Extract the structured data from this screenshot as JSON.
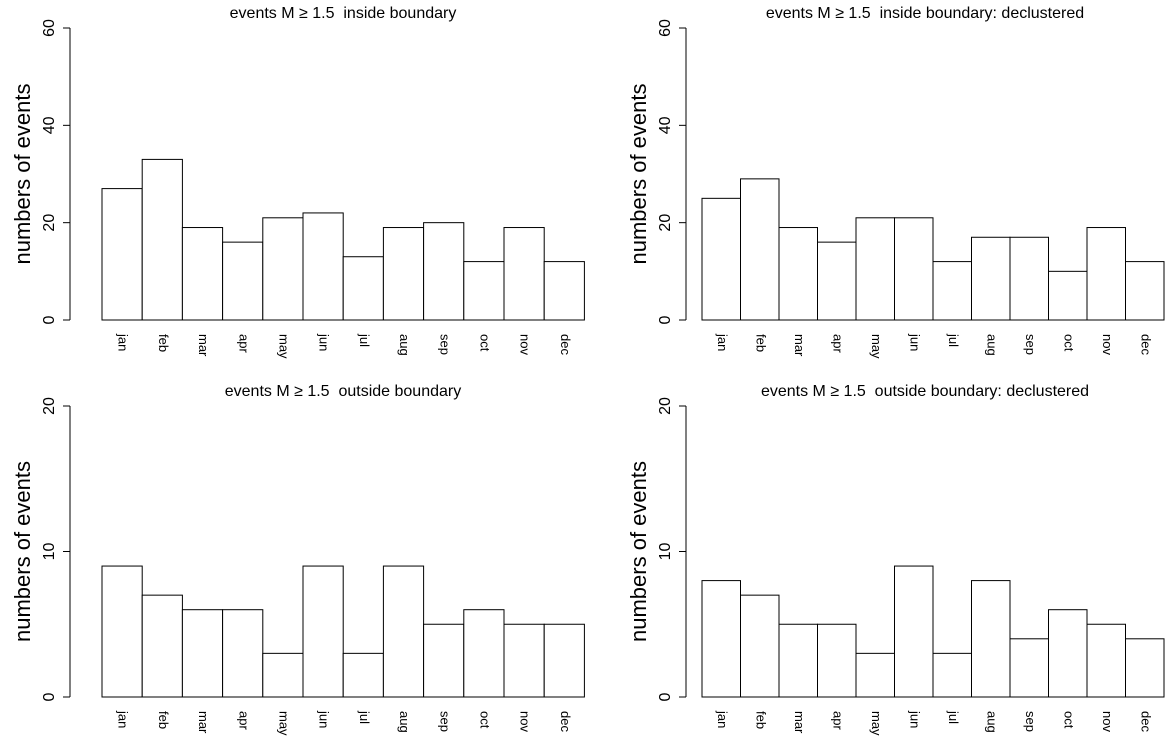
{
  "chart_data": [
    {
      "type": "bar",
      "title": "events M ≥ 1.5  inside boundary",
      "y_label": "numbers of events",
      "categories": [
        "jan",
        "feb",
        "mar",
        "apr",
        "may",
        "jun",
        "jul",
        "aug",
        "sep",
        "oct",
        "nov",
        "dec"
      ],
      "values": [
        27,
        33,
        19,
        16,
        21,
        22,
        13,
        19,
        20,
        12,
        19,
        12
      ],
      "color": "#ffffff",
      "ylim": [
        0,
        60
      ],
      "yticks": [
        0,
        20,
        40,
        60
      ],
      "grid": false
    },
    {
      "type": "bar",
      "title": "events M ≥ 1.5  inside boundary: declustered",
      "y_label": "numbers of events",
      "categories": [
        "jan",
        "feb",
        "mar",
        "apr",
        "may",
        "jun",
        "jul",
        "aug",
        "sep",
        "oct",
        "nov",
        "dec"
      ],
      "values": [
        25,
        29,
        19,
        16,
        21,
        21,
        12,
        17,
        17,
        10,
        19,
        12
      ],
      "color": "#ffffff",
      "ylim": [
        0,
        60
      ],
      "yticks": [
        0,
        20,
        40,
        60
      ],
      "grid": false
    },
    {
      "type": "bar",
      "title": "events M ≥ 1.5  outside boundary",
      "y_label": "numbers of events",
      "categories": [
        "jan",
        "feb",
        "mar",
        "apr",
        "may",
        "jun",
        "jul",
        "aug",
        "sep",
        "oct",
        "nov",
        "dec"
      ],
      "values": [
        9,
        7,
        6,
        6,
        3,
        9,
        3,
        9,
        5,
        6,
        5,
        5
      ],
      "color": "#ffffff",
      "ylim": [
        0,
        20
      ],
      "yticks": [
        0,
        10,
        20
      ],
      "grid": false
    },
    {
      "type": "bar",
      "title": "events M ≥ 1.5  outside boundary: declustered",
      "y_label": "numbers of events",
      "categories": [
        "jan",
        "feb",
        "mar",
        "apr",
        "may",
        "jun",
        "jul",
        "aug",
        "sep",
        "oct",
        "nov",
        "dec"
      ],
      "values": [
        8,
        7,
        5,
        5,
        3,
        9,
        3,
        8,
        4,
        6,
        5,
        4
      ],
      "color": "#ffffff",
      "ylim": [
        0,
        20
      ],
      "yticks": [
        0,
        10,
        20
      ],
      "grid": false
    }
  ]
}
